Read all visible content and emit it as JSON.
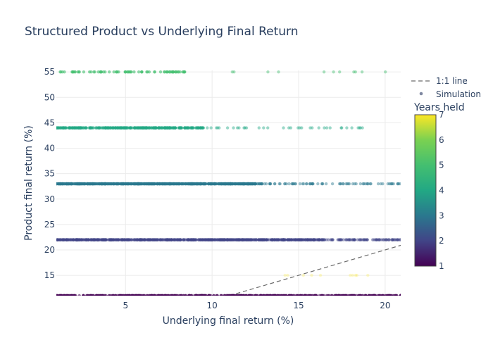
{
  "chart_data": {
    "type": "scatter",
    "title": "Structured Product vs Underlying Final Return",
    "xlabel": "Underlying final return (%)",
    "ylabel": "Product final return (%)",
    "xlim": [
      1,
      20.9
    ],
    "ylim": [
      11,
      55.3
    ],
    "xticks": [
      5,
      10,
      15,
      20
    ],
    "yticks": [
      15,
      20,
      25,
      30,
      35,
      40,
      45,
      50,
      55
    ],
    "grid": true,
    "legend": {
      "placement": "top-right",
      "entries": [
        "1:1 line",
        "Simulation"
      ]
    },
    "colorbar": {
      "title": "Years held",
      "range": [
        1,
        7
      ],
      "ticks": [
        1,
        2,
        3,
        4,
        5,
        6,
        7
      ],
      "colorscale": "viridis"
    },
    "reference_line": {
      "name": "1:1 line",
      "style": "dashed",
      "color": "#6b6b6b",
      "points": [
        [
          11,
          11
        ],
        [
          20.9,
          20.9
        ]
      ]
    },
    "series": [
      {
        "name": "Simulation",
        "years_held": 1,
        "y": 11,
        "x_range": [
          1,
          20.9
        ],
        "density": "dense"
      },
      {
        "name": "Simulation",
        "years_held": 2,
        "y": 22,
        "x_range": [
          1,
          20.9
        ],
        "density": "dense",
        "sparse_from": 16.5
      },
      {
        "name": "Simulation",
        "years_held": 3,
        "y": 33,
        "x_range": [
          1,
          20.9
        ],
        "density": "dense",
        "sparse_from": 12.5
      },
      {
        "name": "Simulation",
        "years_held": 4,
        "y": 44,
        "x_range": [
          1,
          18.7
        ],
        "density": "medium",
        "sparse_from": 9.5
      },
      {
        "name": "Simulation",
        "years_held": 5,
        "y": 55,
        "x_range": [
          1,
          20.1
        ],
        "density": "light",
        "sparse_from": 8.5
      },
      {
        "name": "Simulation",
        "years_held": 7,
        "y": 15,
        "x_range": [
          13.5,
          19
        ],
        "density": "faint"
      }
    ]
  }
}
